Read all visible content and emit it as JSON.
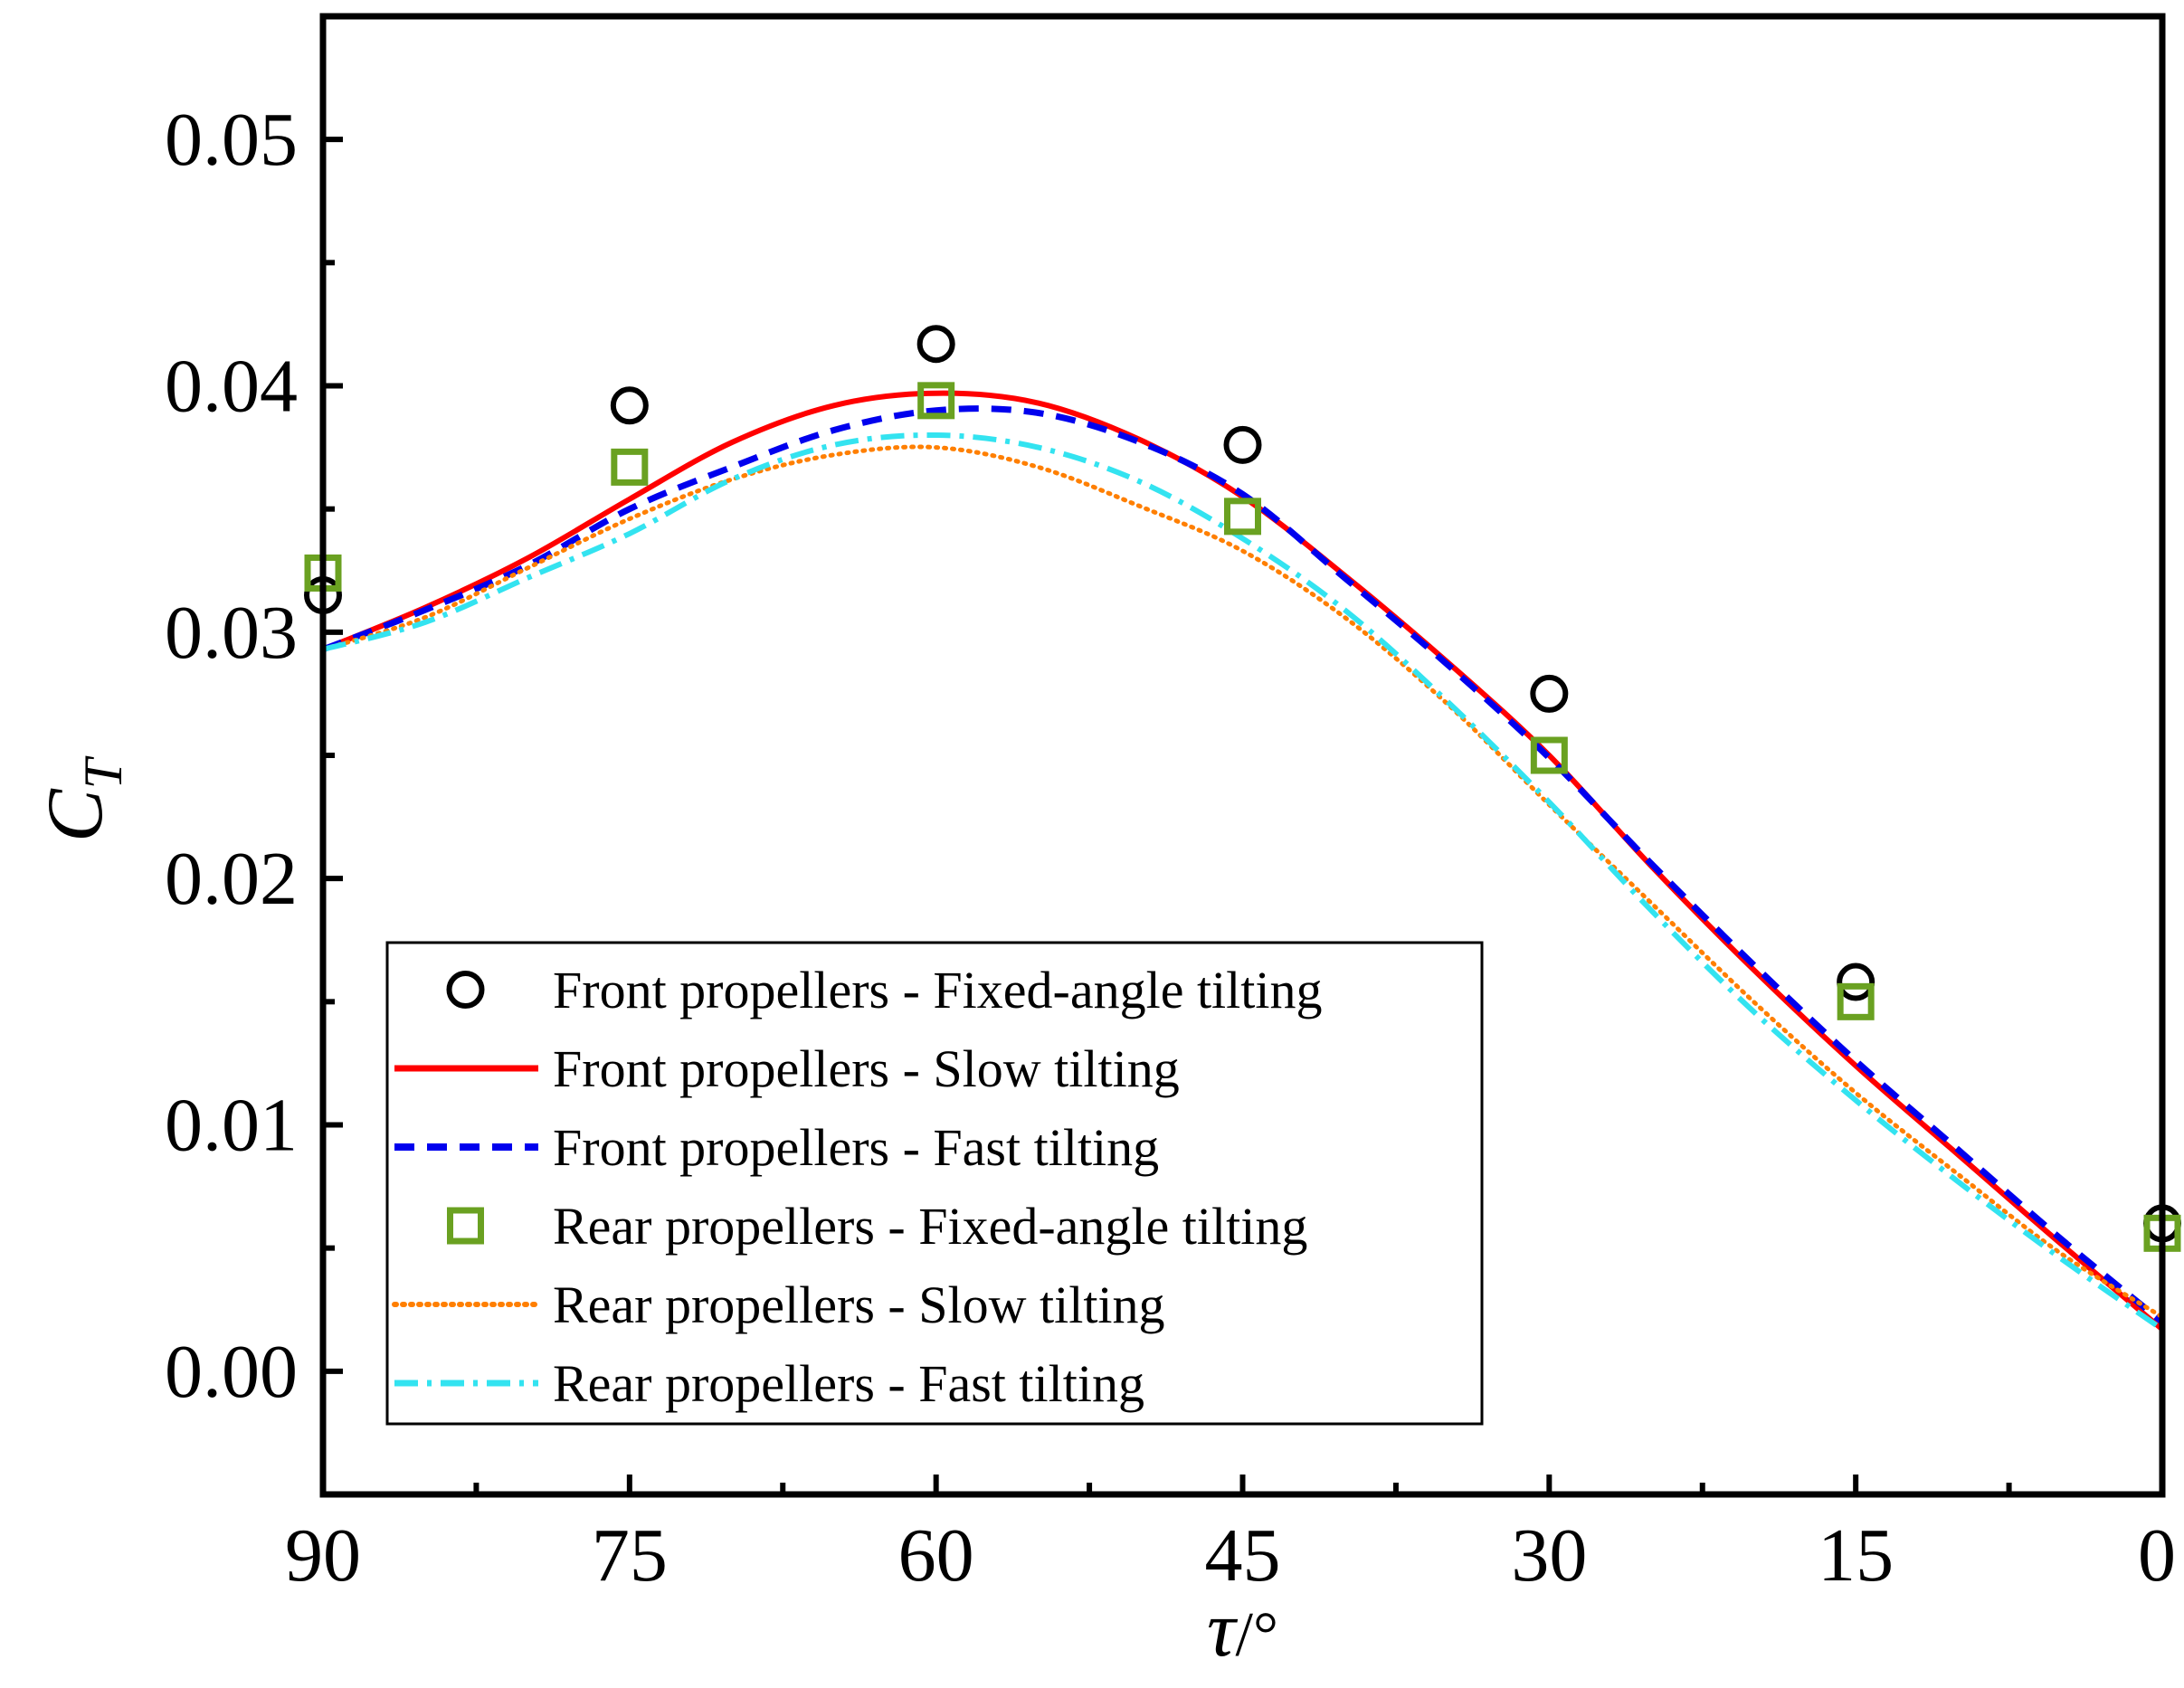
{
  "chart_data": {
    "type": "line",
    "title": "",
    "xlabel": "τ/°",
    "xlabel_symbol": "τ",
    "xlabel_unit": "/°",
    "ylabel": "C_T",
    "ylabel_symbol": "C",
    "ylabel_sub": "T",
    "xlim": [
      90,
      0
    ],
    "ylim": [
      -0.005,
      0.055
    ],
    "xticks": [
      90,
      75,
      60,
      45,
      30,
      15,
      0
    ],
    "xtick_labels": [
      "90",
      "75",
      "60",
      "45",
      "30",
      "15",
      "0"
    ],
    "yticks": [
      0.0,
      0.01,
      0.02,
      0.03,
      0.04,
      0.05
    ],
    "ytick_labels": [
      "0.00",
      "0.01",
      "0.02",
      "0.03",
      "0.04",
      "0.05"
    ],
    "grid": false,
    "legend_position": "lower-left",
    "series": [
      {
        "name": "Front propellers - Fixed-angle tilting",
        "style": "marker-circle",
        "color": "#000000",
        "x": [
          90,
          75,
          60,
          45,
          30,
          15,
          0
        ],
        "y": [
          0.0315,
          0.0392,
          0.0417,
          0.0376,
          0.0275,
          0.0158,
          0.006
        ]
      },
      {
        "name": "Front propellers - Slow tilting",
        "style": "solid",
        "color": "#ff0000",
        "x": [
          90,
          85,
          80,
          75,
          70,
          65,
          60,
          55,
          50,
          45,
          40,
          35,
          30,
          25,
          20,
          15,
          10,
          5,
          0
        ],
        "y": [
          0.0293,
          0.031,
          0.033,
          0.0354,
          0.0377,
          0.0392,
          0.0397,
          0.0393,
          0.0378,
          0.0355,
          0.0323,
          0.0288,
          0.025,
          0.0205,
          0.0163,
          0.0124,
          0.0088,
          0.0052,
          0.0017
        ]
      },
      {
        "name": "Front propellers - Fast tilting",
        "style": "dashed",
        "color": "#0000ee",
        "x": [
          90,
          85,
          80,
          75,
          70,
          65,
          60,
          55,
          50,
          45,
          40,
          35,
          30,
          25,
          20,
          15,
          10,
          5,
          0
        ],
        "y": [
          0.0293,
          0.0309,
          0.0327,
          0.035,
          0.0367,
          0.0382,
          0.039,
          0.0389,
          0.0377,
          0.0356,
          0.0322,
          0.0287,
          0.0249,
          0.0206,
          0.0165,
          0.0126,
          0.009,
          0.0054,
          0.002
        ]
      },
      {
        "name": "Rear propellers - Fixed-angle tilting",
        "style": "marker-square",
        "color": "#6aa121",
        "x": [
          90,
          75,
          60,
          45,
          30,
          15,
          0
        ],
        "y": [
          0.0324,
          0.0367,
          0.0394,
          0.0347,
          0.025,
          0.015,
          0.0056
        ]
      },
      {
        "name": "Rear propellers - Slow tilting",
        "style": "dotted",
        "color": "#ff7f00",
        "x": [
          90,
          85,
          80,
          75,
          70,
          65,
          60,
          55,
          50,
          45,
          40,
          35,
          30,
          25,
          20,
          15,
          10,
          5,
          0
        ],
        "y": [
          0.0293,
          0.0306,
          0.0326,
          0.0346,
          0.0362,
          0.0372,
          0.0375,
          0.0367,
          0.0351,
          0.0333,
          0.0306,
          0.0271,
          0.023,
          0.019,
          0.015,
          0.0113,
          0.008,
          0.0048,
          0.0022
        ]
      },
      {
        "name": "Rear propellers - Fast tilting",
        "style": "dash-dot",
        "color": "#33e3f0",
        "x": [
          90,
          85,
          80,
          75,
          70,
          65,
          60,
          55,
          50,
          45,
          40,
          35,
          30,
          25,
          20,
          15,
          10,
          5,
          0
        ],
        "y": [
          0.0293,
          0.0304,
          0.0322,
          0.034,
          0.0362,
          0.0376,
          0.038,
          0.0375,
          0.0361,
          0.0338,
          0.0309,
          0.0272,
          0.0231,
          0.0187,
          0.0146,
          0.011,
          0.0077,
          0.0046,
          0.0017
        ]
      }
    ]
  }
}
